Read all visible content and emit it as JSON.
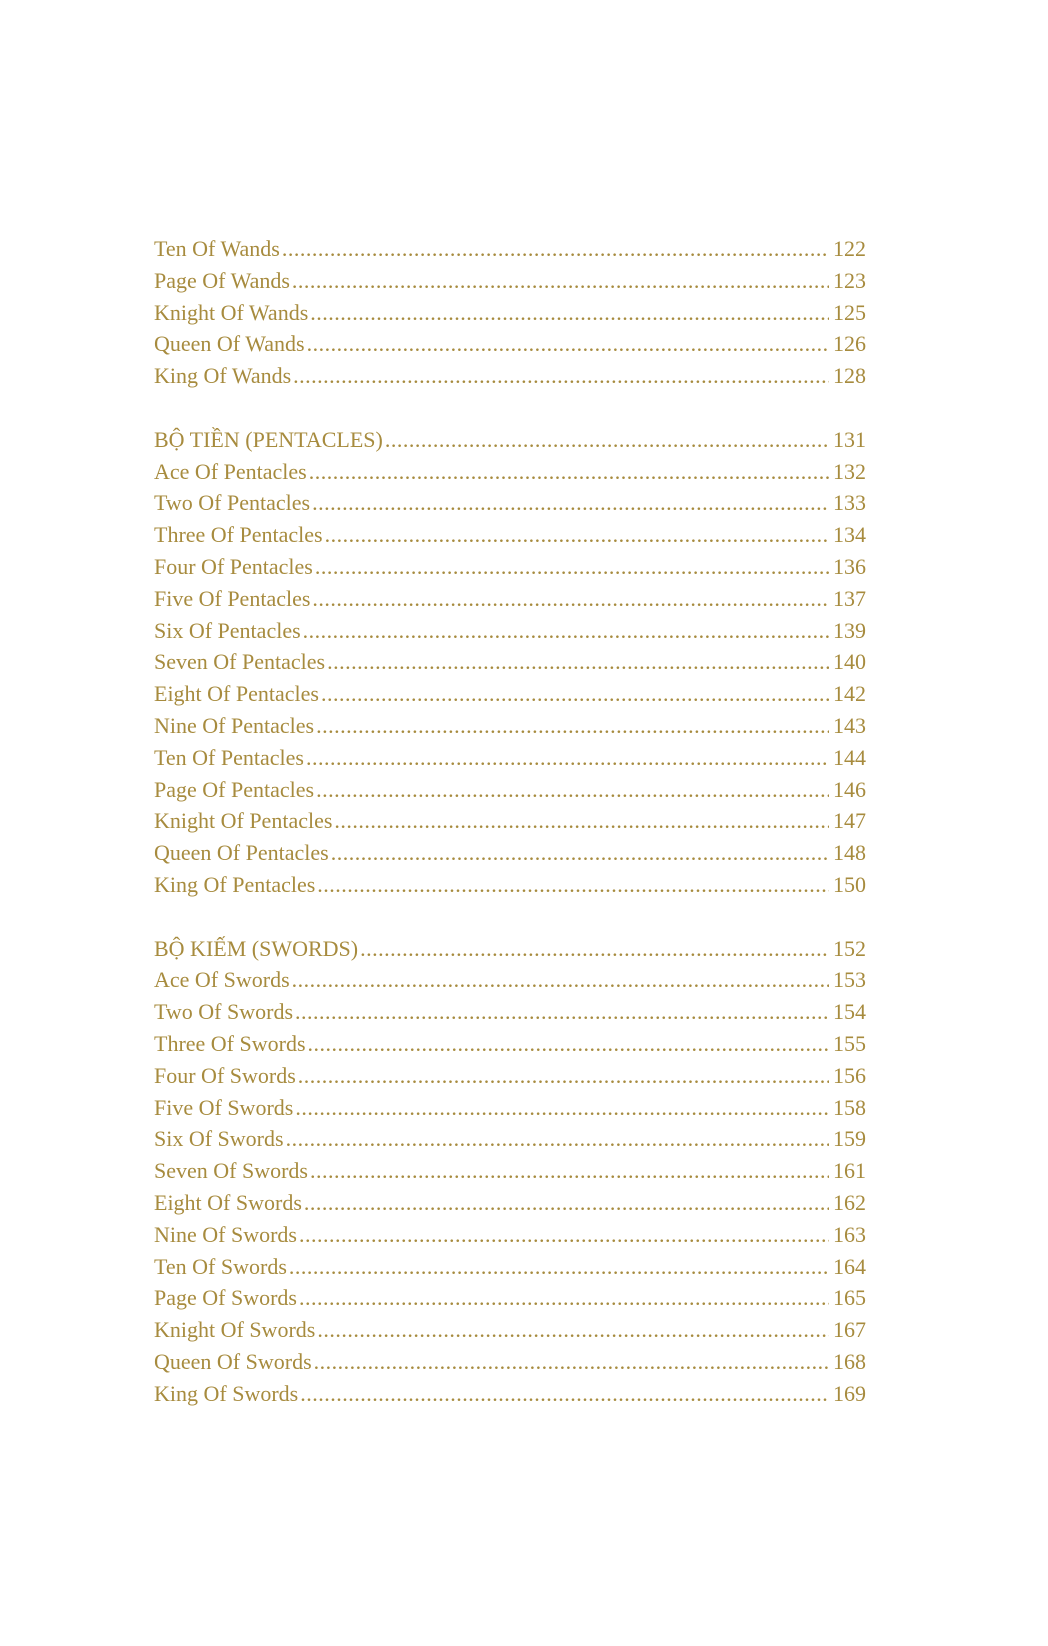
{
  "colors": {
    "text": "#a78b3e"
  },
  "groups": [
    {
      "entries": [
        {
          "title": "Ten Of Wands",
          "page": "122"
        },
        {
          "title": "Page Of Wands",
          "page": "123"
        },
        {
          "title": "Knight Of Wands",
          "page": "125"
        },
        {
          "title": "Queen Of Wands",
          "page": "126"
        },
        {
          "title": "King Of Wands",
          "page": "128"
        }
      ]
    },
    {
      "entries": [
        {
          "title": "BỘ TIỀN (PENTACLES)",
          "page": "131"
        },
        {
          "title": "Ace Of Pentacles",
          "page": "132"
        },
        {
          "title": "Two Of Pentacles",
          "page": "133"
        },
        {
          "title": "Three Of Pentacles",
          "page": "134"
        },
        {
          "title": "Four Of Pentacles",
          "page": "136"
        },
        {
          "title": "Five Of Pentacles",
          "page": "137"
        },
        {
          "title": "Six Of Pentacles",
          "page": "139"
        },
        {
          "title": "Seven Of Pentacles",
          "page": "140"
        },
        {
          "title": "Eight Of Pentacles",
          "page": "142"
        },
        {
          "title": "Nine Of Pentacles",
          "page": "143"
        },
        {
          "title": "Ten Of Pentacles",
          "page": "144"
        },
        {
          "title": "Page Of Pentacles",
          "page": "146"
        },
        {
          "title": "Knight Of Pentacles",
          "page": "147"
        },
        {
          "title": "Queen Of Pentacles",
          "page": "148"
        },
        {
          "title": "King Of Pentacles",
          "page": "150"
        }
      ]
    },
    {
      "entries": [
        {
          "title": "BỘ KIẾM (SWORDS)",
          "page": "152"
        },
        {
          "title": "Ace Of Swords",
          "page": "153"
        },
        {
          "title": "Two Of Swords",
          "page": "154"
        },
        {
          "title": "Three Of Swords",
          "page": "155"
        },
        {
          "title": "Four Of Swords",
          "page": "156"
        },
        {
          "title": "Five Of Swords",
          "page": "158"
        },
        {
          "title": "Six Of Swords",
          "page": "159"
        },
        {
          "title": "Seven Of Swords",
          "page": "161"
        },
        {
          "title": "Eight Of Swords",
          "page": "162"
        },
        {
          "title": "Nine Of Swords",
          "page": "163"
        },
        {
          "title": "Ten Of Swords",
          "page": "164"
        },
        {
          "title": "Page Of Swords",
          "page": "165"
        },
        {
          "title": "Knight Of Swords",
          "page": "167"
        },
        {
          "title": "Queen Of Swords",
          "page": "168"
        },
        {
          "title": "King Of Swords",
          "page": "169"
        }
      ]
    }
  ]
}
